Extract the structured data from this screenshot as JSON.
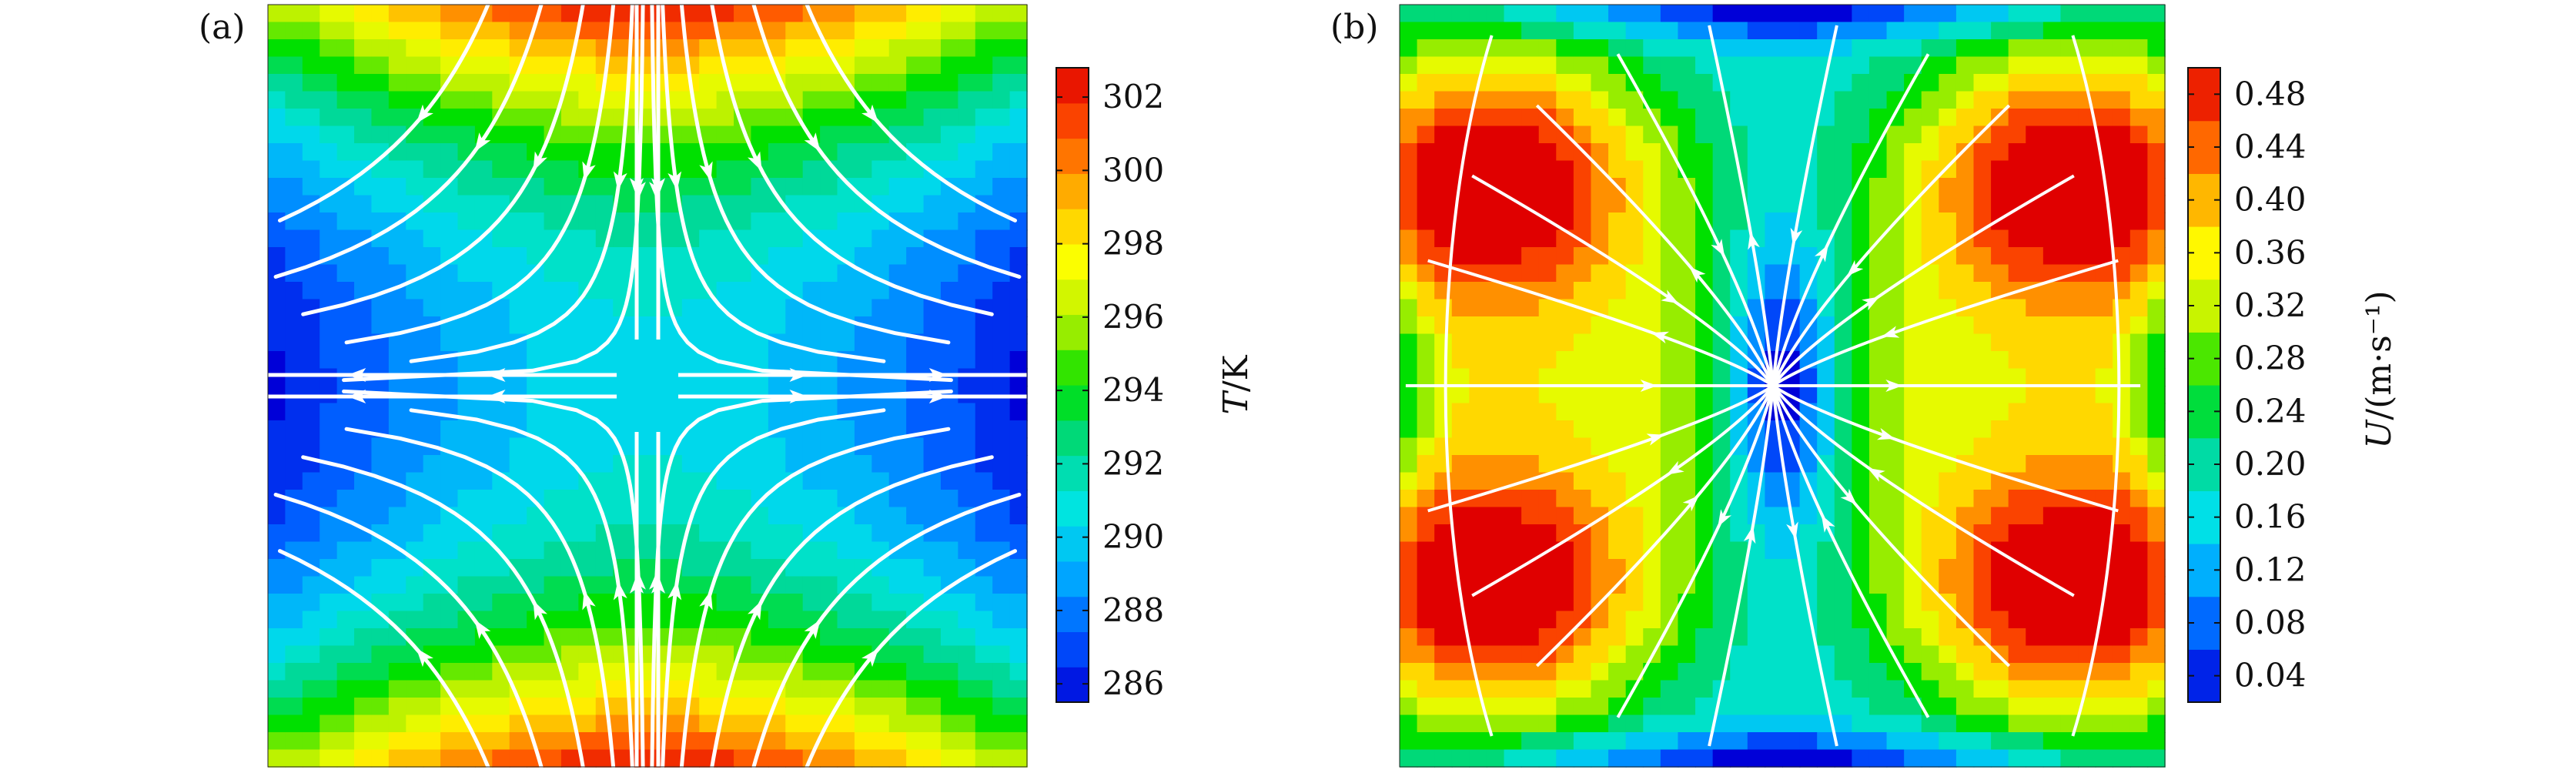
{
  "chart_data": [
    {
      "type": "heatmap",
      "panel_label": "(a)",
      "title": "",
      "xlabel": "",
      "ylabel": "",
      "colorbar": {
        "label_var": "T",
        "label_unit": "/K",
        "range": [
          285.5,
          302.8
        ],
        "ticks": [
          286,
          288,
          290,
          292,
          294,
          296,
          298,
          300,
          302
        ],
        "tick_labels": [
          "286",
          "288",
          "290",
          "292",
          "294",
          "296",
          "298",
          "300",
          "302"
        ]
      },
      "field": {
        "description_values": {
          "center": 290.5,
          "top_bottom_edge_center": 302.5,
          "left_right_edge_center": 286.0
        },
        "min": 285.8,
        "max": 302.6
      },
      "streamlines": "white, saddle flow: inflow from top/bottom, outflow to left/right",
      "colors": [
        "#0000d8",
        "#0055ff",
        "#00aaff",
        "#00e5e5",
        "#00d890",
        "#00e000",
        "#b5f000",
        "#ffff00",
        "#ffb000",
        "#ff5000",
        "#e00000"
      ]
    },
    {
      "type": "heatmap",
      "panel_label": "(b)",
      "title": "",
      "xlabel": "",
      "ylabel": "",
      "colorbar": {
        "label_var": "U",
        "label_unit": "/(m·s⁻¹)",
        "range": [
          0.02,
          0.5
        ],
        "ticks": [
          0.04,
          0.08,
          0.12,
          0.16,
          0.2,
          0.24,
          0.28,
          0.32,
          0.36,
          0.4,
          0.44,
          0.48
        ],
        "tick_labels": [
          "0.04",
          "0.08",
          "0.12",
          "0.16",
          "0.20",
          "0.24",
          "0.28",
          "0.32",
          "0.36",
          "0.40",
          "0.44",
          "0.48"
        ]
      },
      "field": {
        "description_values": {
          "center": 0.04,
          "quadrant_peaks": 0.49,
          "top_bottom_edge": 0.06
        },
        "min": 0.02,
        "max": 0.49
      },
      "streamlines": "white, radial flow converging/diverging at center with edge recirculation",
      "colors": [
        "#0000d8",
        "#0055ff",
        "#00aaff",
        "#00e5e5",
        "#00d890",
        "#00e000",
        "#b5f000",
        "#ffff00",
        "#ffb000",
        "#ff5000",
        "#e00000"
      ]
    }
  ]
}
